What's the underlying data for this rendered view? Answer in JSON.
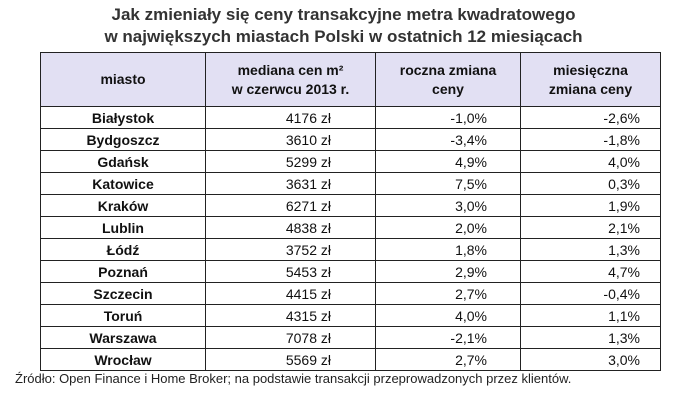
{
  "title": [
    "Jak zmieniały się ceny transakcyjne metra kwadratowego",
    "w największych miastach Polski w ostatnich 12 miesiącach"
  ],
  "table": {
    "header": [
      [
        "miasto"
      ],
      [
        "mediana cen m²",
        "w czerwcu 2013 r."
      ],
      [
        "roczna zmiana",
        "ceny"
      ],
      [
        "miesięczna",
        "zmiana ceny"
      ]
    ],
    "rows": [
      [
        "Białystok",
        "4176 zł",
        "-1,0%",
        "-2,6%"
      ],
      [
        "Bydgoszcz",
        "3610 zł",
        "-3,4%",
        "-1,8%"
      ],
      [
        "Gdańsk",
        "5299 zł",
        "4,9%",
        "4,0%"
      ],
      [
        "Katowice",
        "3631 zł",
        "7,5%",
        "0,3%"
      ],
      [
        "Kraków",
        "6271 zł",
        "3,0%",
        "1,9%"
      ],
      [
        "Lublin",
        "4838 zł",
        "2,0%",
        "2,1%"
      ],
      [
        "Łódź",
        "3752 zł",
        "1,8%",
        "1,3%"
      ],
      [
        "Poznań",
        "5453 zł",
        "2,9%",
        "4,7%"
      ],
      [
        "Szczecin",
        "4415 zł",
        "2,7%",
        "-0,4%"
      ],
      [
        "Toruń",
        "4315 zł",
        "4,0%",
        "1,1%"
      ],
      [
        "Warszawa",
        "7078 zł",
        "-2,1%",
        "1,3%"
      ],
      [
        "Wrocław",
        "5569 zł",
        "2,7%",
        "3,0%"
      ]
    ]
  },
  "source": "Źródło: Open Finance i Home Broker; na podstawie transakcji przeprowadzonych przez klientów."
}
